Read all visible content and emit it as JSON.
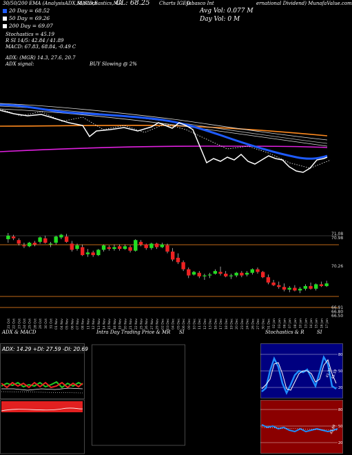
{
  "header": {
    "top_left": "30/50/200 EMA (AnalysisADX,MACD,E",
    "top_mid": "SI,Stochastics,MR",
    "close": "CL: 68.25",
    "ticker_label": "Charts IGEO",
    "company_a": "Jabasco Int",
    "company_b": "ernational Dividend) MunafaValue.com",
    "avg_vol": "Avg Vol: 0.077 M",
    "day_vol": "Day Vol: 0   M",
    "adx_line": "ADX:                        (MGR) 14.3,  27.6,  20.7",
    "adx_signal_label": "ADX  signal:",
    "adx_signal_value": "BUY Slowing @ 2%"
  },
  "legend": [
    {
      "label": "20  Day  = 68.52",
      "color": "#1e5bff"
    },
    {
      "label": "50  Day  = 69.26",
      "color": "#ffffff"
    },
    {
      "label": "200  Day  = 69.07",
      "color": "#ffffff"
    }
  ],
  "indicators": {
    "stochastics": "Stochastics = 45.19",
    "rsi": "R                 SI 14/5: 42.84  / 41.89",
    "macd": "MACD: 67.83,  68.84, -0.49  C"
  },
  "price_axis": {
    "top_a": "71.08",
    "top_b": "70.98",
    "mid": "70.26",
    "low_a": "66.91",
    "low_b": "66.80",
    "low_c": "66.50"
  },
  "dates": [
    "21 Oct",
    "22 Oct",
    "23 Oct",
    "24 Oct",
    "25 Oct",
    "28 Oct",
    "29 Oct",
    "30 Oct",
    "31 Oct",
    "01 Nov",
    "04 Nov",
    "05 Nov",
    "06 Nov",
    "07 Nov",
    "08 Nov",
    "11 Nov",
    "12 Nov",
    "13 Nov",
    "14 Nov",
    "15 Nov",
    "18 Nov",
    "19 Nov",
    "20 Nov",
    "21 Nov",
    "22 Nov",
    "25 Nov",
    "26 Nov",
    "27 Nov",
    "29 Nov",
    "02 Dec",
    "03 Dec",
    "04 Dec",
    "05 Dec",
    "06 Dec",
    "09 Dec",
    "10 Dec",
    "11 Dec",
    "12 Dec",
    "13 Dec",
    "16 Dec",
    "17 Dec",
    "18 Dec",
    "19 Dec",
    "20 Dec",
    "23 Dec",
    "24 Dec",
    "26 Dec",
    "27 Dec",
    "30 Dec",
    "31 Dec",
    "02 Jan",
    "03 Jan",
    "06 Jan",
    "07 Jan",
    "08 Jan",
    "10 Jan",
    "13 Jan",
    "14 Jan",
    "15 Jan",
    "16 Jan",
    "17 Jan"
  ],
  "panels": {
    "adx_title": "ADX  & MACD",
    "adx_readout": "ADX: 14.29  +DI: 27.59  -DI: 20.69",
    "intraday_title": "Intra  Day  Trading Price  & MR",
    "intraday_si": "SI",
    "stoch_title": "Stochastics & R",
    "stoch_si": "SI",
    "stoch_ticks": [
      "80",
      "50",
      "20"
    ],
    "stoch_labels": [
      "41.30",
      "45.19"
    ],
    "rsi_ticks": [
      "80",
      "50",
      "20"
    ],
    "rsi_labels": [
      "42.84"
    ]
  },
  "chart_data": {
    "type": "candlestick",
    "title": "",
    "xlabel": "",
    "ylabel": "",
    "ylim": [
      66.5,
      71.1
    ],
    "candles": [
      {
        "o": 70.75,
        "h": 71.1,
        "l": 70.55,
        "c": 70.95
      },
      {
        "o": 70.9,
        "h": 71.0,
        "l": 70.7,
        "c": 70.8
      },
      {
        "o": 70.7,
        "h": 70.8,
        "l": 70.4,
        "c": 70.5
      },
      {
        "o": 70.4,
        "h": 70.55,
        "l": 70.25,
        "c": 70.35
      },
      {
        "o": 70.35,
        "h": 70.6,
        "l": 70.3,
        "c": 70.55
      },
      {
        "o": 70.55,
        "h": 70.65,
        "l": 70.35,
        "c": 70.45
      },
      {
        "o": 70.6,
        "h": 70.9,
        "l": 70.5,
        "c": 70.85
      },
      {
        "o": 70.8,
        "h": 70.95,
        "l": 70.5,
        "c": 70.55
      },
      {
        "o": 70.45,
        "h": 70.6,
        "l": 70.3,
        "c": 70.5
      },
      {
        "o": 70.55,
        "h": 70.95,
        "l": 70.45,
        "c": 70.9
      },
      {
        "o": 70.85,
        "h": 71.05,
        "l": 70.75,
        "c": 71.0
      },
      {
        "o": 70.9,
        "h": 71.05,
        "l": 70.55,
        "c": 70.6
      },
      {
        "o": 70.5,
        "h": 70.65,
        "l": 70.05,
        "c": 70.15
      },
      {
        "o": 70.2,
        "h": 70.5,
        "l": 70.1,
        "c": 70.4
      },
      {
        "o": 70.3,
        "h": 70.45,
        "l": 69.8,
        "c": 69.85
      },
      {
        "o": 69.9,
        "h": 70.2,
        "l": 69.75,
        "c": 70.0
      },
      {
        "o": 70.0,
        "h": 70.1,
        "l": 69.75,
        "c": 69.85
      },
      {
        "o": 69.85,
        "h": 70.2,
        "l": 69.8,
        "c": 70.15
      },
      {
        "o": 70.15,
        "h": 70.45,
        "l": 70.05,
        "c": 70.4
      },
      {
        "o": 70.3,
        "h": 70.4,
        "l": 70.1,
        "c": 70.2
      },
      {
        "o": 70.2,
        "h": 70.45,
        "l": 70.1,
        "c": 70.3
      },
      {
        "o": 70.35,
        "h": 70.45,
        "l": 70.1,
        "c": 70.2
      },
      {
        "o": 70.2,
        "h": 70.45,
        "l": 70.15,
        "c": 70.35
      },
      {
        "o": 70.3,
        "h": 70.4,
        "l": 70.0,
        "c": 70.1
      },
      {
        "o": 70.1,
        "h": 70.75,
        "l": 70.05,
        "c": 70.7
      },
      {
        "o": 70.6,
        "h": 70.7,
        "l": 70.35,
        "c": 70.45
      },
      {
        "o": 70.45,
        "h": 70.5,
        "l": 70.15,
        "c": 70.25
      },
      {
        "o": 70.25,
        "h": 70.55,
        "l": 70.15,
        "c": 70.5
      },
      {
        "o": 70.5,
        "h": 70.55,
        "l": 70.2,
        "c": 70.3
      },
      {
        "o": 70.3,
        "h": 70.55,
        "l": 70.25,
        "c": 70.45
      },
      {
        "o": 70.4,
        "h": 70.5,
        "l": 69.95,
        "c": 70.05
      },
      {
        "o": 70.05,
        "h": 70.25,
        "l": 69.5,
        "c": 69.6
      },
      {
        "o": 69.7,
        "h": 69.95,
        "l": 69.35,
        "c": 69.45
      },
      {
        "o": 69.45,
        "h": 69.55,
        "l": 68.95,
        "c": 69.05
      },
      {
        "o": 69.05,
        "h": 69.15,
        "l": 68.55,
        "c": 68.7
      },
      {
        "o": 68.75,
        "h": 68.95,
        "l": 68.7,
        "c": 68.9
      },
      {
        "o": 68.85,
        "h": 68.95,
        "l": 68.55,
        "c": 68.65
      },
      {
        "o": 68.65,
        "h": 68.8,
        "l": 68.45,
        "c": 68.7
      },
      {
        "o": 68.7,
        "h": 68.85,
        "l": 68.55,
        "c": 68.75
      },
      {
        "o": 68.8,
        "h": 69.05,
        "l": 68.75,
        "c": 68.95
      },
      {
        "o": 68.9,
        "h": 69.2,
        "l": 68.7,
        "c": 68.8
      },
      {
        "o": 68.8,
        "h": 68.95,
        "l": 68.6,
        "c": 68.65
      },
      {
        "o": 68.65,
        "h": 68.8,
        "l": 68.5,
        "c": 68.7
      },
      {
        "o": 68.7,
        "h": 68.9,
        "l": 68.6,
        "c": 68.85
      },
      {
        "o": 68.85,
        "h": 68.95,
        "l": 68.6,
        "c": 68.7
      },
      {
        "o": 68.75,
        "h": 68.95,
        "l": 68.65,
        "c": 68.85
      },
      {
        "o": 68.85,
        "h": 69.1,
        "l": 68.75,
        "c": 69.05
      },
      {
        "o": 69.05,
        "h": 69.15,
        "l": 68.8,
        "c": 68.9
      },
      {
        "o": 68.9,
        "h": 68.95,
        "l": 68.55,
        "c": 68.6
      },
      {
        "o": 68.6,
        "h": 68.75,
        "l": 68.2,
        "c": 68.3
      },
      {
        "o": 68.3,
        "h": 68.45,
        "l": 68.1,
        "c": 68.15
      },
      {
        "o": 68.15,
        "h": 68.35,
        "l": 67.95,
        "c": 68.05
      },
      {
        "o": 68.05,
        "h": 68.25,
        "l": 67.8,
        "c": 67.9
      },
      {
        "o": 67.9,
        "h": 68.1,
        "l": 67.75,
        "c": 68.0
      },
      {
        "o": 68.0,
        "h": 68.15,
        "l": 67.8,
        "c": 67.85
      },
      {
        "o": 67.85,
        "h": 68.05,
        "l": 67.7,
        "c": 67.95
      },
      {
        "o": 67.95,
        "h": 68.2,
        "l": 67.85,
        "c": 68.1
      },
      {
        "o": 68.1,
        "h": 68.3,
        "l": 67.9,
        "c": 67.95
      },
      {
        "o": 67.95,
        "h": 68.25,
        "l": 67.85,
        "c": 68.2
      },
      {
        "o": 68.2,
        "h": 68.35,
        "l": 68.05,
        "c": 68.1
      },
      {
        "o": 68.1,
        "h": 68.4,
        "l": 68.05,
        "c": 68.25
      }
    ]
  }
}
